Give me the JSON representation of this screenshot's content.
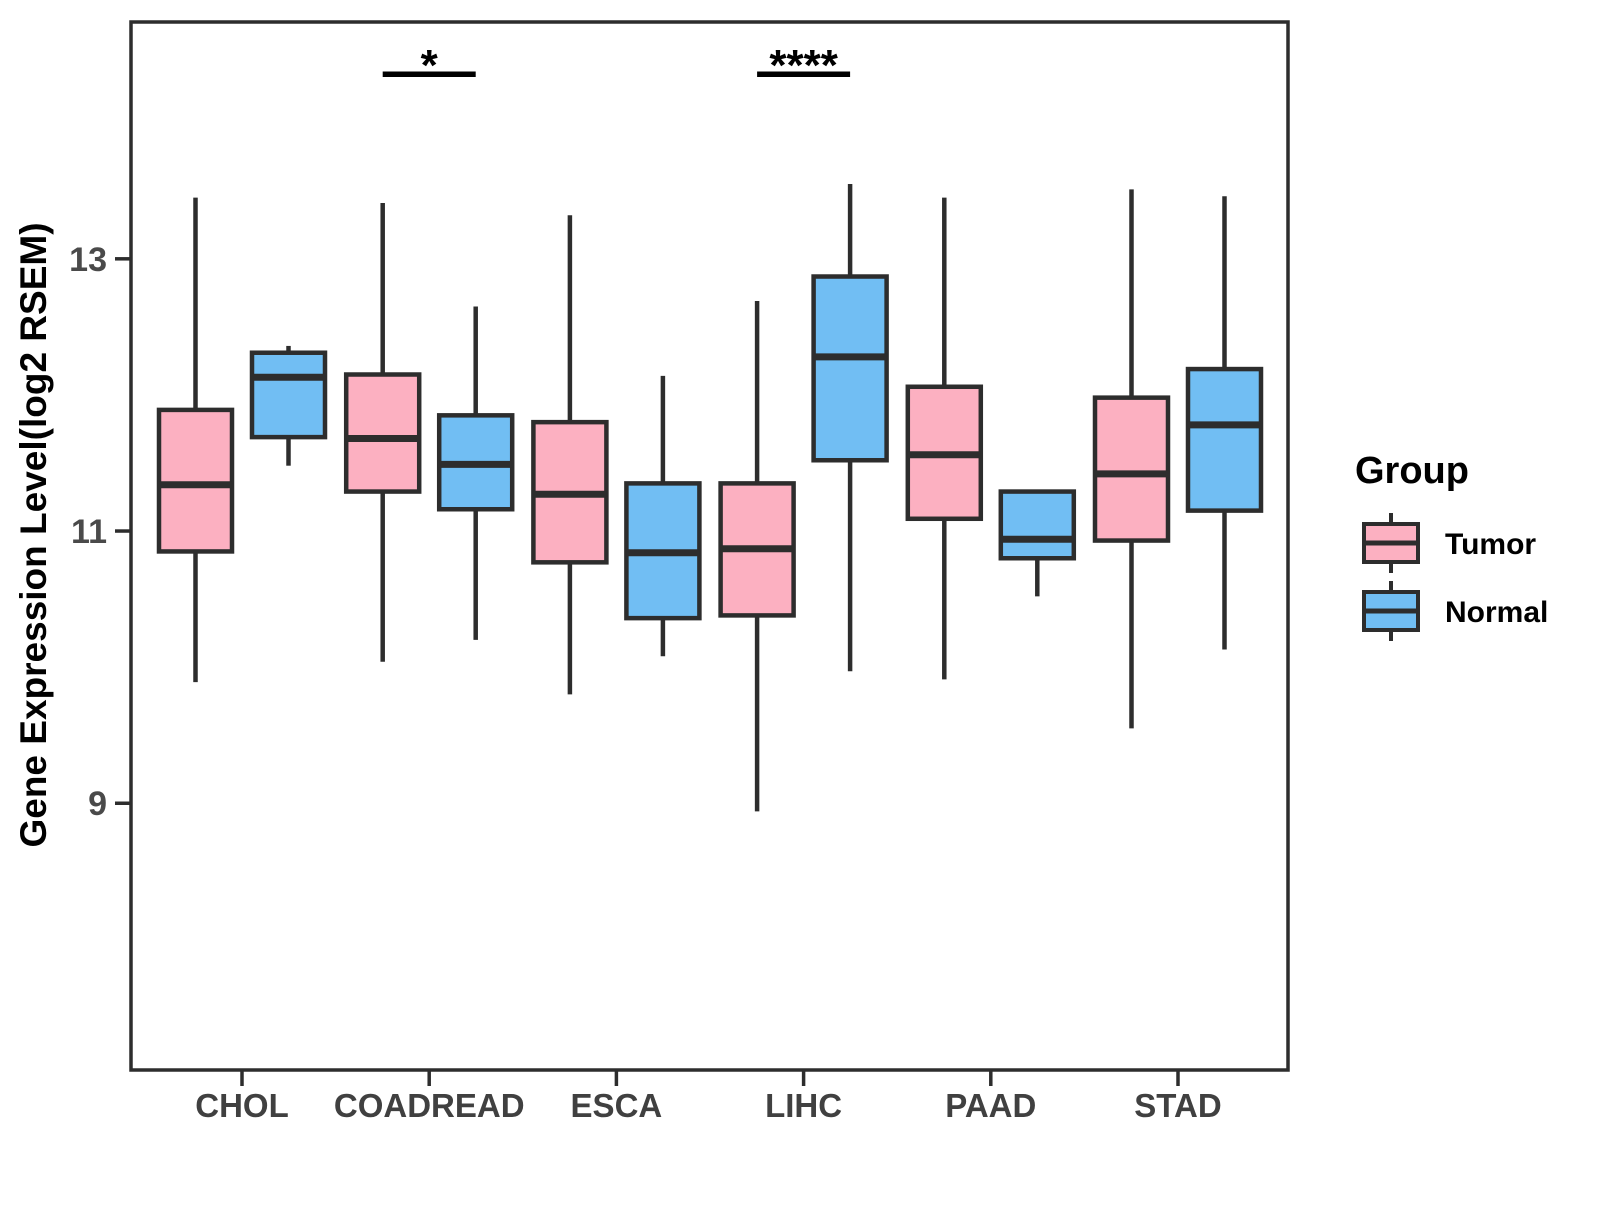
{
  "chart_data": {
    "type": "boxplot",
    "title": "",
    "xlabel": "",
    "ylabel": "Gene Expression Level(log2 RSEM)",
    "legend_title": "Group",
    "legend_position": "right",
    "grid": false,
    "categories": [
      "CHOL",
      "COADREAD",
      "ESCA",
      "LIHC",
      "PAAD",
      "STAD"
    ],
    "y_ticks": [
      13,
      11,
      9
    ],
    "ylim": [
      7.04,
      14.74
    ],
    "series": [
      {
        "name": "Tumor",
        "color": "#FCB0C1",
        "boxes": [
          {
            "category": "CHOL",
            "whisker_low": 9.89,
            "q1": 10.85,
            "median": 11.34,
            "q3": 11.89,
            "whisker_high": 13.45
          },
          {
            "category": "COADREAD",
            "whisker_low": 10.04,
            "q1": 11.29,
            "median": 11.68,
            "q3": 12.15,
            "whisker_high": 13.41
          },
          {
            "category": "ESCA",
            "whisker_low": 9.8,
            "q1": 10.77,
            "median": 11.27,
            "q3": 11.8,
            "whisker_high": 13.32
          },
          {
            "category": "LIHC",
            "whisker_low": 8.94,
            "q1": 10.38,
            "median": 10.87,
            "q3": 11.35,
            "whisker_high": 12.69
          },
          {
            "category": "PAAD",
            "whisker_low": 9.91,
            "q1": 11.09,
            "median": 11.56,
            "q3": 12.06,
            "whisker_high": 13.45
          },
          {
            "category": "STAD",
            "whisker_low": 9.55,
            "q1": 10.93,
            "median": 11.42,
            "q3": 11.98,
            "whisker_high": 13.51
          }
        ]
      },
      {
        "name": "Normal",
        "color": "#71BEF3",
        "boxes": [
          {
            "category": "CHOL",
            "whisker_low": 11.48,
            "q1": 11.69,
            "median": 12.13,
            "q3": 12.31,
            "whisker_high": 12.36
          },
          {
            "category": "COADREAD",
            "whisker_low": 10.2,
            "q1": 11.16,
            "median": 11.49,
            "q3": 11.85,
            "whisker_high": 12.65
          },
          {
            "category": "ESCA",
            "whisker_low": 10.08,
            "q1": 10.36,
            "median": 10.84,
            "q3": 11.35,
            "whisker_high": 12.14
          },
          {
            "category": "LIHC",
            "whisker_low": 9.97,
            "q1": 11.52,
            "median": 12.28,
            "q3": 12.87,
            "whisker_high": 13.55
          },
          {
            "category": "PAAD",
            "whisker_low": 10.52,
            "q1": 10.8,
            "median": 10.94,
            "q3": 11.29,
            "whisker_high": 11.29
          },
          {
            "category": "STAD",
            "whisker_low": 10.13,
            "q1": 11.15,
            "median": 11.78,
            "q3": 12.19,
            "whisker_high": 13.46
          }
        ]
      }
    ],
    "significance": [
      {
        "category": "COADREAD",
        "label": "*"
      },
      {
        "category": "LIHC",
        "label": "****"
      }
    ],
    "colors": {
      "line": "#2D2D2D",
      "axis_text": "#4A4A4A",
      "x_label_text": "#404040",
      "tumor_fill": "#FCB0C1",
      "normal_fill": "#71BEF3",
      "background": "#FFFFFF"
    }
  }
}
